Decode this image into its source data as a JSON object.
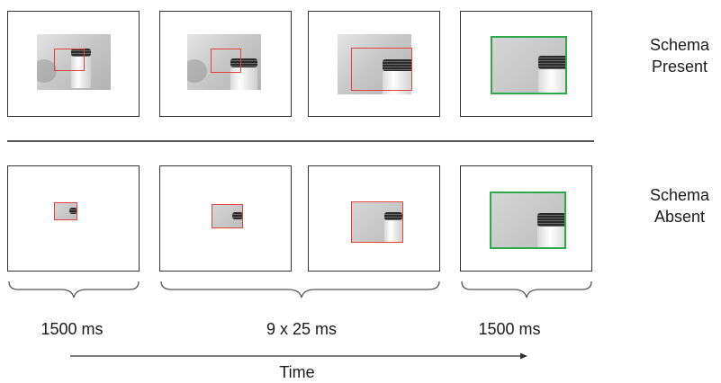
{
  "row_labels": {
    "present": [
      "Schema",
      "Present"
    ],
    "absent": [
      "Schema",
      "Absent"
    ]
  },
  "durations": {
    "first": "1500 ms",
    "middle": "9 x 25 ms",
    "last": "1500 ms"
  },
  "time_label": "Time",
  "colors": {
    "cue_box": "#e0443c",
    "target_box": "#2ea84a",
    "frame": "#333333"
  }
}
